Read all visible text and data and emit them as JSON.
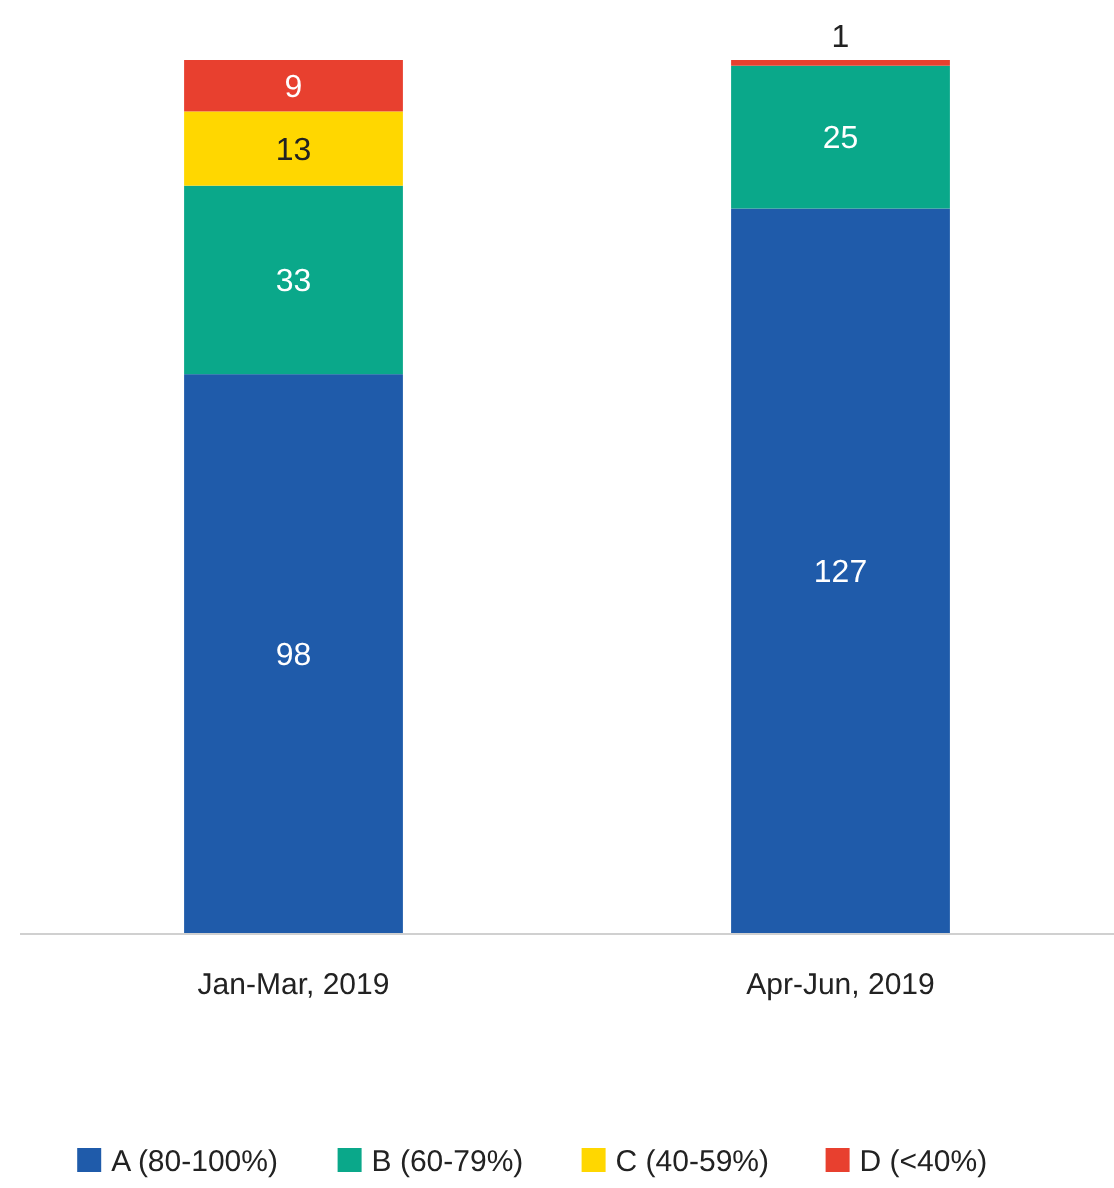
{
  "chart_data": {
    "type": "bar",
    "stacked": true,
    "data_labels": true,
    "legend": "bottom",
    "categories": [
      "Jan-Mar, 2019",
      "Apr-Jun, 2019"
    ],
    "series": [
      {
        "name": "A (80-100%)",
        "color": "#1f5baa",
        "values": [
          98,
          127
        ]
      },
      {
        "name": "B (60-79%)",
        "color": "#0aa88a",
        "values": [
          33,
          25
        ]
      },
      {
        "name": "C (40-59%)",
        "color": "#ffd700",
        "values": [
          13,
          null
        ]
      },
      {
        "name": "D (<40%)",
        "color": "#e8402f",
        "values": [
          9,
          1
        ]
      }
    ]
  }
}
